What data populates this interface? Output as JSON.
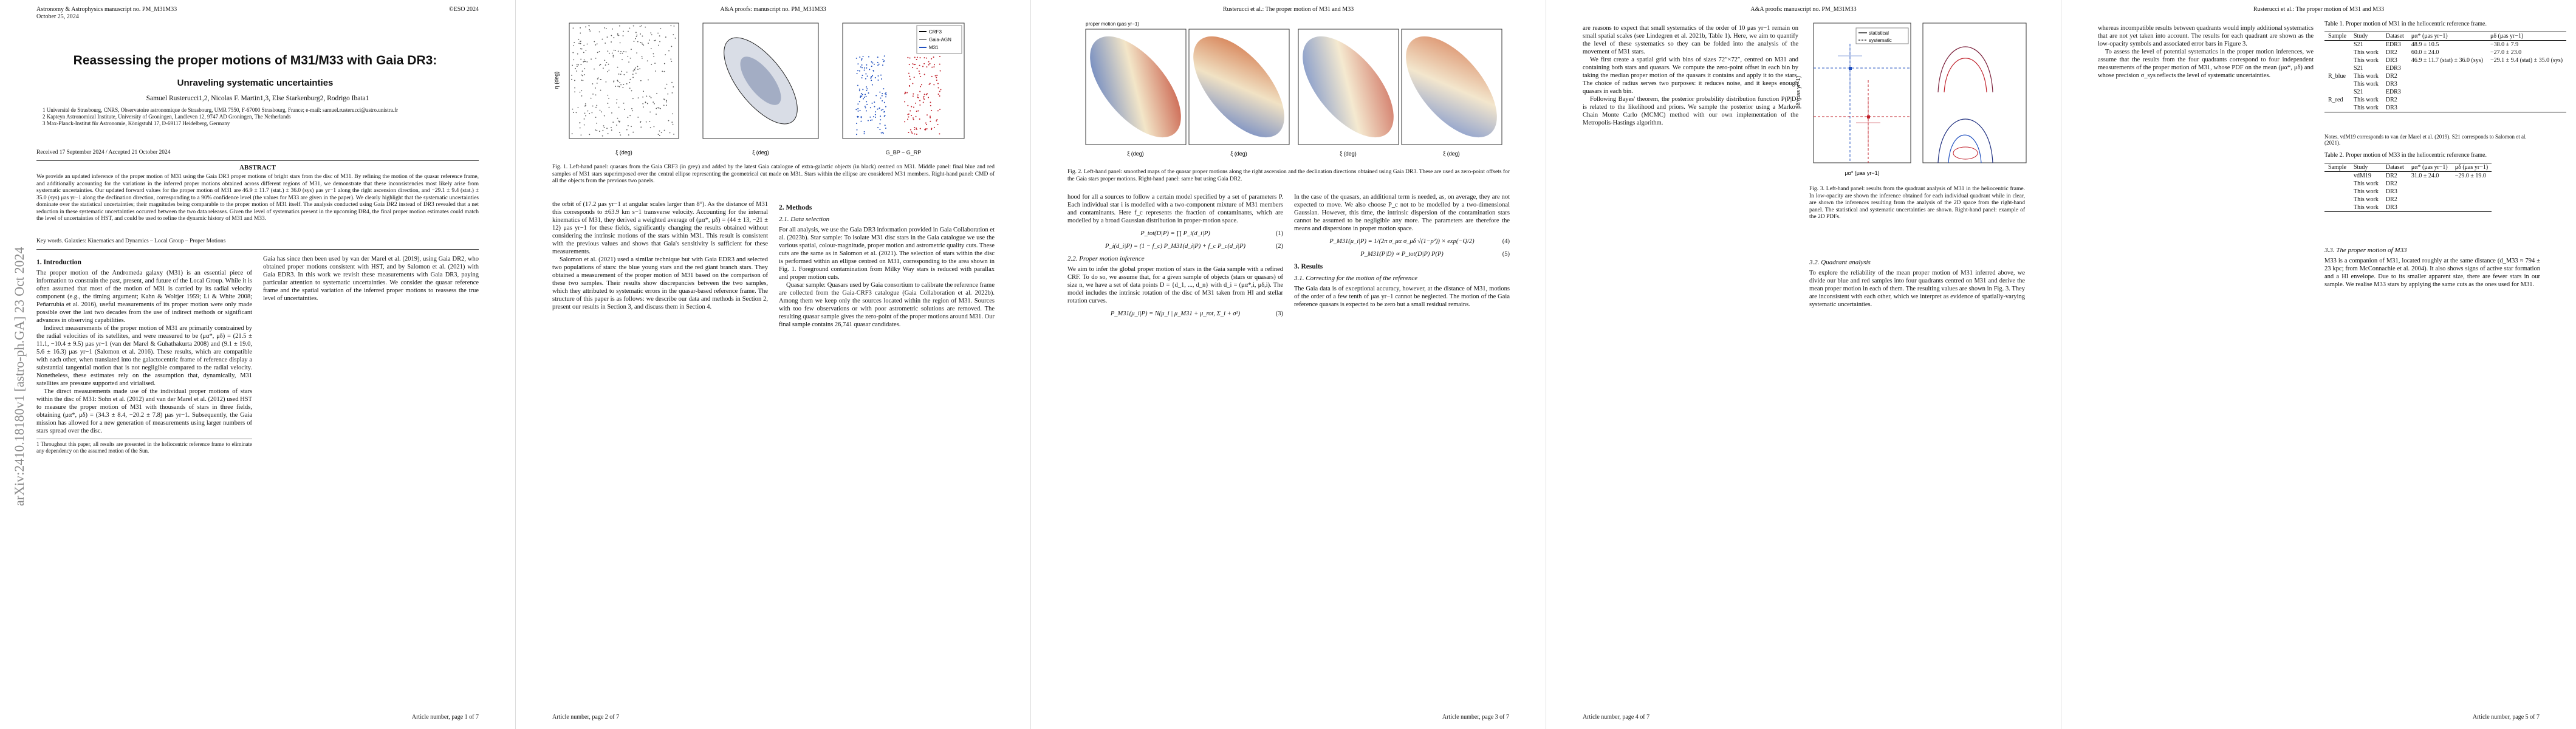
{
  "arxiv_stamp": "arXiv:2410.18180v1  [astro-ph.GA]  23 Oct 2024",
  "page1": {
    "journal": "Astronomy & Astrophysics manuscript no. PM_M31M33",
    "date": "October 25, 2024",
    "copyright": "©ESO 2024",
    "title": "Reassessing the proper motions of M31/M33 with Gaia DR3:",
    "subtitle": "Unraveling systematic uncertainties",
    "authors": "Samuel Rusterucci1,2, Nicolas F. Martin1,3, Else Starkenburg2, Rodrigo Ibata1",
    "affil1": "1 Université de Strasbourg, CNRS, Observatoire astronomique de Strasbourg, UMR 7550, F-67000 Strasbourg, France; e-mail: samuel.rusterucci@astro.unistra.fr",
    "affil2": "2 Kapteyn Astronomical Institute, University of Groningen, Landleven 12, 9747 AD Groningen, The Netherlands",
    "affil3": "3 Max-Planck-Institut für Astronomie, Königstuhl 17, D-69117 Heidelberg, Germany",
    "received": "Received 17 September 2024 / Accepted 21 October 2024",
    "abstract_head": "ABSTRACT",
    "abstract": "We provide an updated inference of the proper motion of M31 using the Gaia DR3 proper motions of bright stars from the disc of M31. By refining the motion of the quasar reference frame, and additionally accounting for the variations in the inferred proper motions obtained across different regions of M31, we demonstrate that these inconsistencies most likely arise from systematic uncertainties. Our updated forward values for the proper motion of M31 are 46.9 ± 11.7 (stat.) ± 36.0 (sys) μas yr−1 along the right ascension direction, and −29.1 ± 9.4 (stat.) ± 35.0 (sys) μas yr−1 along the declination direction, corresponding to a 90% confidence level (the values for M33 are given in the paper). We clearly highlight that the systematic uncertainties dominate over the statistical uncertainties; their magnitudes being comparable to the proper motion of M31 itself. The analysis conducted using Gaia DR2 instead of DR3 revealed that a net reduction in these systematic uncertainties occurred between the two data releases. Given the level of systematics present in the upcoming DR4, the final proper motion estimates could match the level of uncertainties of HST, and could be used to refine the dynamic history of M31 and M33.",
    "keywords": "Key words. Galaxies: Kinematics and Dynamics – Local Group – Proper Motions",
    "sec1_head": "1. Introduction",
    "sec1_text_a": "The proper motion of the Andromeda galaxy (M31) is an essential piece of information to constrain the past, present, and future of the Local Group. While it is often assumed that most of the motion of M31 is carried by its radial velocity component (e.g., the timing argument; Kahn & Woltjer 1959; Li & White 2008; Peñarrubia et al. 2016), useful measurements of its proper motion were only made possible over the last two decades from the use of indirect methods or significant advances in observing capabilities.",
    "sec1_text_b": "Indirect measurements of the proper motion of M31 are primarily constrained by the radial velocities of its satellites, and were measured to be (μα*, μδ) = (21.5 ± 11.1, −10.4 ± 9.5) μas yr−1 (van der Marel & Guhathakurta 2008) and (9.1 ± 19.0, 5.6 ± 16.3) μas yr−1 (Salomon et al. 2016). These results, which are compatible with each other, when translated into the galactocentric frame of reference display a substantial tangential motion that is not negligible compared to the radial velocity. Nonetheless, these estimates rely on the assumption that, dynamically, M31 satellites are pressure supported and virialised.",
    "sec1_text_c": "The direct measurements made use of the individual proper motions of stars within the disc of M31: Sohn et al. (2012) and van der Marel et al. (2012) used HST to measure the proper motion of M31 with thousands of stars in three fields, obtaining (μα*, μδ) = (34.3 ± 8.4, −20.2 ± 7.8) μas yr−1. Subsequently, the Gaia mission has allowed for a new generation of measurements using larger numbers of stars spread over the disc.",
    "sec1_text_d": "Gaia has since then been used by van der Marel et al. (2019), using Gaia DR2, who obtained proper motions consistent with HST, and by Salomon et al. (2021) with Gaia EDR3. In this work we revisit these measurements with Gaia DR3, paying particular attention to systematic uncertainties. We consider the quasar reference frame and the spatial variation of the inferred proper motions to reassess the true level of uncertainties.",
    "footnote1": "1 Throughout this paper, all results are presented in the heliocentric reference frame to eliminate any dependency on the assumed motion of the Sun.",
    "page_num": "Article number, page 1 of 7"
  },
  "page2": {
    "header": "A&A proofs: manuscript no. PM_M31M33",
    "fig1_caption": "Fig. 1. Left-hand panel: quasars from the Gaia CRF3 (in grey) and added by the latest Gaia catalogue of extra-galactic objects (in black) centred on M31. Middle panel: final blue and red samples of M31 stars superimposed over the central ellipse representing the geometrical cut made on M31. Stars within the ellipse are considered M31 members. Right-hand panel: CMD of all the objects from the previous two panels.",
    "fig1_legend": [
      "CRF3",
      "Gaia-AGN",
      "M31"
    ],
    "text_a": "the orbit of (17.2 μas yr−1 at angular scales larger than 8°). As the distance of M31 this corresponds to ±63.9 km s−1 transverse velocity. Accounting for the internal kinematics of M31, they derived a weighted average of (μα*, μδ) = (44 ± 13, −21 ± 12) μas yr−1 for these fields, significantly changing the results obtained without considering the intrinsic motions of the stars within M31. This result is consistent with the previous values and shows that Gaia's sensitivity is sufficient for these measurements.",
    "text_b": "Salomon et al. (2021) used a similar technique but with Gaia EDR3 and selected two populations of stars: the blue young stars and the red giant branch stars. They obtained a measurement of the proper motion of M31 based on the comparison of these two samples. Their results show discrepancies between the two samples, which they attributed to systematic errors in the quasar-based reference frame. The structure of this paper is as follows: we describe our data and methods in Section 2, present our results in Section 3, and discuss them in Section 4.",
    "sec2_head": "2. Methods",
    "sec21_head": "2.1. Data selection",
    "text_c": "For all analysis, we use the Gaia DR3 information provided in Gaia Collaboration et al. (2023b). Star sample: To isolate M31 disc stars in the Gaia catalogue we use the various spatial, colour-magnitude, proper motion and astrometric quality cuts. These cuts are the same as in Salomon et al. (2021). The selection of stars within the disc is performed within an ellipse centred on M31, corresponding to the area shown in Fig. 1. Foreground contamination from Milky Way stars is reduced with parallax and proper motion cuts.",
    "text_d": "Quasar sample: Quasars used by Gaia consortium to calibrate the reference frame are collected from the Gaia-CRF3 catalogue (Gaia Collaboration et al. 2022b). Among them we keep only the sources located within the region of M31. Sources with too few observations or with poor astrometric solutions are removed. The resulting quasar sample gives the zero-point of the proper motions around M31. Our final sample contains 26,741 quasar candidates.",
    "page_num": "Article number, page 2 of 7"
  },
  "page3": {
    "header": "Rusterucci et al.: The proper motion of M31 and M33",
    "fig2_caption": "Fig. 2. Left-hand panel: smoothed maps of the quasar proper motions along the right ascension and the declination directions obtained using Gaia DR3. These are used as zero-point offsets for the Gaia stars proper motions. Right-hand panel: same but using Gaia DR2.",
    "fig2_axis": "proper motion (μas yr−1)",
    "eq1": "P_tot(D|P) = ∏ P_i(d_i|P)",
    "eq1_num": "(1)",
    "eq2": "P_i(d_i|P) = (1 − f_c) P_M31(d_i|P) + f_c P_c(d_i|P)",
    "eq2_num": "(2)",
    "eq3": "P_M31(μ_i|P) = N(μ_i | μ_M31 + μ_rot, Σ_i + σ²)",
    "eq3_num": "(3)",
    "eq4": "P_M31(μ_i|P) = 1/(2π σ_μα σ_μδ √(1−ρ²)) × exp(−Q/2)",
    "eq4_num": "(4)",
    "eq5": "P_M31(P|D) ∝ P_tot(D|P) P(P)",
    "eq5_num": "(5)",
    "text_a": "hood for all a sources to follow a certain model specified by a set of parameters P. Each individual star i is modelled with a two-component mixture of M31 members and contaminants. Here f_c represents the fraction of contaminants, which are modelled by a broad Gaussian distribution in proper-motion space.",
    "sec22_head": "2.2. Proper motion inference",
    "text_b": "We aim to infer the global proper motion of stars in the Gaia sample with a refined CRF. To do so, we assume that, for a given sample of objects (stars or quasars) of size n, we have a set of data points D = {d_1, ..., d_n} with d_i = (μα*,i, μδ,i). The model includes the intrinsic rotation of the disc of M31 taken from HI and stellar rotation curves.",
    "text_c": "In the case of the quasars, an additional term is needed, as, on average, they are not expected to move. We also choose P_c not to be modelled by a two-dimensional Gaussian. However, this time, the intrinsic dispersion of the contamination stars cannot be assumed to be negligible any more. The parameters are therefore the means and dispersions in proper motion space.",
    "sec3_head": "3. Results",
    "sec31_head": "3.1. Correcting for the motion of the reference",
    "text_d": "The Gaia data is of exceptional accuracy, however, at the distance of M31, motions of the order of a few tenth of μas yr−1 cannot be neglected. The motion of the Gaia reference quasars is expected to be zero but a small residual remains.",
    "page_num": "Article number, page 3 of 7"
  },
  "page4": {
    "header": "A&A proofs: manuscript no. PM_M31M33",
    "fig3_legend": [
      "statistical",
      "systematic"
    ],
    "fig3_caption": "Fig. 3. Left-hand panel: results from the quadrant analysis of M31 in the heliocentric frame. In low-opacity are shown the inference obtained for each individual quadrant while in clear, are shown the inferences resulting from the analysis of the 2D space from the right-hand panel. The statistical and systematic uncertainties are shown. Right-hand panel: example of the 2D PDFs.",
    "fig3_xlabel": "μα* (μas yr−1)",
    "fig3_ylabel": "μδ (μas yr−1)",
    "text_a": "are reasons to expect that small systematics of the order of 10 μas yr−1 remain on small spatial scales (see Lindegren et al. 2021b, Table 1). Here, we aim to quantify the level of these systematics so they can be folded into the analysis of the movement of M31 stars.",
    "text_b": "We first create a spatial grid with bins of sizes 72″×72″, centred on M31 and containing both stars and quasars. We compute the zero-point offset in each bin by taking the median proper motion of the quasars it contains and apply it to the stars. The choice of radius serves two purposes: it reduces noise, and it keeps enough quasars in each bin.",
    "text_c": "Following Bayes' theorem, the posterior probability distribution function P(P|D) is related to the likelihood and priors. We sample the posterior using a Markov Chain Monte Carlo (MCMC) method with our own implementation of the Metropolis-Hastings algorithm.",
    "sec32_head": "3.2. Quadrant analysis",
    "text_d": "To explore the reliability of the mean proper motion of M31 inferred above, we divide our blue and red samples into four quadrants centred on M31 and derive the mean proper motion in each of them. The resulting values are shown in Fig. 3. They are inconsistent with each other, which we interpret as evidence of spatially-varying systematic uncertainties.",
    "page_num": "Article number, page 4 of 7"
  },
  "page5": {
    "header": "Rusterucci et al.: The proper motion of M31 and M33",
    "table1_caption": "Table 1. Proper motion of M31 in the heliocentric reference frame.",
    "table1_headers": [
      "Sample",
      "Study",
      "Dataset",
      "μα* (μas yr−1)",
      "μδ (μas yr−1)"
    ],
    "table1_rows": [
      [
        "",
        "S21",
        "EDR3",
        "48.9 ± 10.5",
        "−38.0 ± 7.9"
      ],
      [
        "",
        "This work",
        "DR2",
        "60.0 ± 24.0",
        "−27.0 ± 23.0"
      ],
      [
        "",
        "This work",
        "DR3",
        "46.9 ± 11.7 (stat) ± 36.0 (sys)",
        "−29.1 ± 9.4 (stat) ± 35.0 (sys)"
      ],
      [
        "",
        "S21",
        "EDR3",
        "",
        ""
      ],
      [
        "R_blue",
        "This work",
        "DR2",
        "",
        ""
      ],
      [
        "",
        "This work",
        "DR3",
        "",
        ""
      ],
      [
        "",
        "S21",
        "EDR3",
        "",
        ""
      ],
      [
        "R_red",
        "This work",
        "DR2",
        "",
        ""
      ],
      [
        "",
        "This work",
        "DR3",
        "",
        ""
      ]
    ],
    "table1_note": "Notes. vdM19 corresponds to van der Marel et al. (2019). S21 corresponds to Salomon et al. (2021).",
    "table2_caption": "Table 2. Proper motion of M33 in the heliocentric reference frame.",
    "table2_headers": [
      "Sample",
      "Study",
      "Dataset",
      "μα* (μas yr−1)",
      "μδ (μas yr−1)"
    ],
    "table2_rows": [
      [
        "",
        "vdM19",
        "DR2",
        "31.0 ± 24.0",
        "−29.0 ± 19.0"
      ],
      [
        "",
        "This work",
        "DR2",
        "",
        ""
      ],
      [
        "",
        "This work",
        "DR3",
        "",
        ""
      ],
      [
        "",
        "This work",
        "DR2",
        "",
        ""
      ],
      [
        "",
        "This work",
        "DR3",
        "",
        ""
      ]
    ],
    "text_a": "whereas incompatible results between quadrants would imply additional systematics that are not yet taken into account. The results for each quadrant are shown as the low-opacity symbols and associated error bars in Figure 3.",
    "text_b": "To assess the level of potential systematics in the proper motion inferences, we assume that the results from the four quadrants correspond to four independent measurements of the proper motion of M31, whose PDF on the mean (μα*, μδ) and whose precision σ_sys reflects the level of systematic uncertainties.",
    "sec33_head": "3.3. The proper motion of M33",
    "text_c": "M33 is a companion of M31, located roughly at the same distance (d_M33 ≈ 794 ± 23 kpc; from McConnachie et al. 2004). It also shows signs of active star formation and a HI envelope. Due to its smaller apparent size, there are fewer stars in our sample. We realise M33 stars by applying the same cuts as the ones used for M31.",
    "page_num": "Article number, page 5 of 7"
  }
}
